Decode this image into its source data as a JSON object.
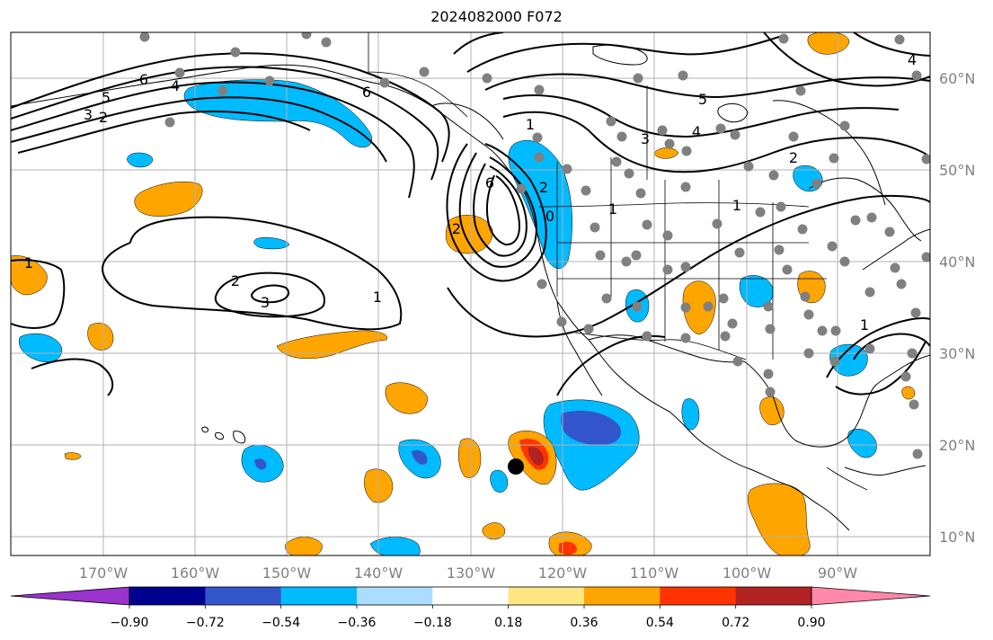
{
  "title": "2024082000 F072",
  "lon_labels": [
    "170°W",
    "160°W",
    "150°W",
    "140°W",
    "130°W",
    "120°W",
    "110°W",
    "100°W",
    "90°W"
  ],
  "lat_labels": [
    "60°N",
    "50°N",
    "40°N",
    "30°N",
    "20°N",
    "10°N"
  ],
  "colorbar": {
    "tick_labels": [
      "−0.90",
      "−0.72",
      "−0.54",
      "−0.36",
      "−0.18",
      "0.18",
      "0.36",
      "0.54",
      "0.72",
      "0.90"
    ],
    "colors": [
      "#9933cc",
      "#000090",
      "#3355cc",
      "#00bbff",
      "#aaddff",
      "#ffffff",
      "#ffe680",
      "#ffa500",
      "#ff3300",
      "#b22222",
      "#ff88aa"
    ]
  },
  "contour_labels": [
    "6",
    "4",
    "5",
    "3",
    "2",
    "6",
    "1",
    "3",
    "4",
    "5",
    "4",
    "2",
    "1",
    "6",
    "0",
    "1",
    "1",
    "1",
    "2",
    "3",
    "1",
    "2",
    "2"
  ],
  "colors": {
    "positive": "#ffa500",
    "negative": "#00bbff",
    "contour": "#000000",
    "station": "#808080"
  }
}
